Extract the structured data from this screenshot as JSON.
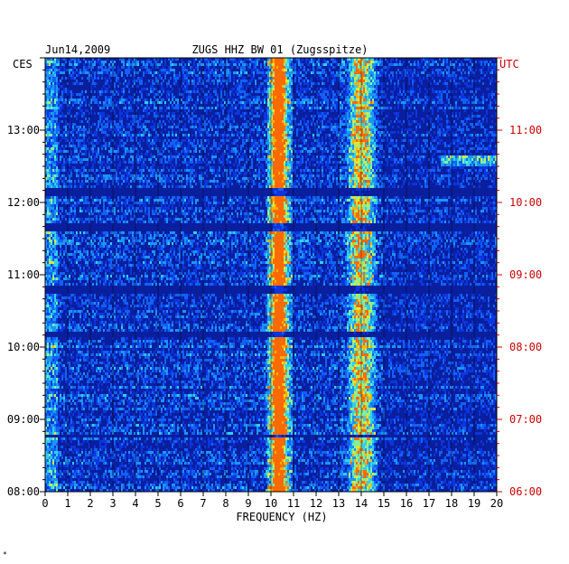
{
  "chart_data": {
    "type": "heatmap",
    "date_label": "Jun14,2009",
    "title": "ZUGS HHZ BW 01 (Zugsspitze)",
    "xlabel": "FREQUENCY (HZ)",
    "left_axis_label": "CES",
    "right_axis_label": "UTC",
    "xlim": [
      0,
      20
    ],
    "x_ticks": [
      "0",
      "1",
      "2",
      "3",
      "4",
      "5",
      "6",
      "7",
      "8",
      "9",
      "10",
      "11",
      "12",
      "13",
      "14",
      "15",
      "16",
      "17",
      "18",
      "19",
      "20"
    ],
    "left_time_ticks": [
      "13:00",
      "12:00",
      "11:00",
      "10:00",
      "09:00",
      "08:00"
    ],
    "right_time_ticks": [
      "11:00",
      "10:00",
      "09:00",
      "08:00",
      "07:00",
      "06:00"
    ],
    "time_range_ces": [
      "08:00",
      "14:00"
    ],
    "colors": {
      "background_band": "#0a1f9e",
      "low": "#0b2bd8",
      "mid": "#1fa3f0",
      "high": "#d8e83a",
      "peak": "#ff6a00",
      "left_labels": "#000000",
      "right_labels": "#cc0000"
    },
    "quiet_bands_ces": [
      [
        "12:05",
        "12:12"
      ],
      [
        "11:35",
        "11:42"
      ],
      [
        "10:45",
        "10:50"
      ],
      [
        "10:08",
        "10:13"
      ],
      [
        "08:45",
        "08:48"
      ]
    ],
    "dominant_frequencies_hz": [
      10.2,
      10.5,
      13.8,
      14.3
    ],
    "footer_mark": "*"
  }
}
